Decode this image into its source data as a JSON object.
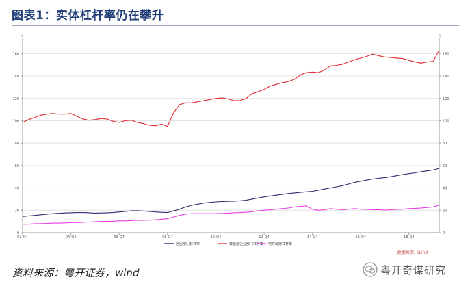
{
  "title": "图表1：实体杠杆率仍在攀升",
  "source": "资料来源：粤开证券，wind",
  "credit": "数据来源：Wind",
  "watermark": "粤开奇谋研究",
  "colors": {
    "title": "#1f3e77",
    "household": "#2e2a6e",
    "nonfin": "#e0282e",
    "government": "#e63ce6"
  },
  "chart_data": {
    "type": "line",
    "title": "",
    "xlabel": "",
    "ylabel": "",
    "ylim": [
      0,
      170
    ],
    "yticks": [
      0,
      20,
      40,
      60,
      80,
      100,
      120,
      140,
      160
    ],
    "y_unit_left": "%",
    "y_unit_right": "%",
    "grid": true,
    "legend": "bottom",
    "x_tick_labels": [
      "02-Q4",
      "04-Q4",
      "06-Q4",
      "08-Q4",
      "10-Q4",
      "12-Q4",
      "14-Q4",
      "16-Q4",
      "18-Q4"
    ],
    "x": [
      "02-Q4",
      "03-Q1",
      "03-Q2",
      "03-Q3",
      "03-Q4",
      "04-Q1",
      "04-Q2",
      "04-Q3",
      "04-Q4",
      "05-Q1",
      "05-Q2",
      "05-Q3",
      "05-Q4",
      "06-Q1",
      "06-Q2",
      "06-Q3",
      "06-Q4",
      "07-Q1",
      "07-Q2",
      "07-Q3",
      "07-Q4",
      "08-Q1",
      "08-Q2",
      "08-Q3",
      "08-Q4",
      "09-Q1",
      "09-Q2",
      "09-Q3",
      "09-Q4",
      "10-Q1",
      "10-Q2",
      "10-Q3",
      "10-Q4",
      "11-Q1",
      "11-Q2",
      "11-Q3",
      "11-Q4",
      "12-Q1",
      "12-Q2",
      "12-Q3",
      "12-Q4",
      "13-Q1",
      "13-Q2",
      "13-Q3",
      "13-Q4",
      "14-Q1",
      "14-Q2",
      "14-Q3",
      "14-Q4",
      "15-Q1",
      "15-Q2",
      "15-Q3",
      "15-Q4",
      "16-Q1",
      "16-Q2",
      "16-Q3",
      "16-Q4",
      "17-Q1",
      "17-Q2",
      "17-Q3",
      "17-Q4",
      "18-Q1",
      "18-Q2",
      "18-Q3",
      "18-Q4",
      "19-Q1",
      "19-Q2",
      "19-Q3",
      "19-Q4",
      "20-Q1"
    ],
    "series": [
      {
        "name": "居民部门杠杆率",
        "color": "#2e2a6e",
        "values": [
          14.5,
          15,
          15.5,
          16,
          16.5,
          17,
          17.3,
          17.6,
          17.8,
          18,
          18,
          17.8,
          17.5,
          17.6,
          17.8,
          18,
          18.5,
          19,
          19.5,
          19.6,
          19.3,
          19,
          18.5,
          18.2,
          18,
          19.5,
          21,
          23,
          24.5,
          25.5,
          26.5,
          27,
          27.5,
          27.8,
          28,
          28.2,
          28.5,
          29,
          30,
          31,
          32,
          32.8,
          33.5,
          34.2,
          35,
          35.5,
          36,
          36.5,
          37,
          38,
          39,
          40,
          41,
          42,
          43.5,
          45,
          46,
          47,
          48,
          48.7,
          49.3,
          50,
          51,
          52,
          52.8,
          53.5,
          54.5,
          55.3,
          56,
          57.5
        ]
      },
      {
        "name": "非金融企业部门杠杆率",
        "color": "#e0282e",
        "values": [
          98.5,
          101,
          103,
          105,
          106,
          106.5,
          106,
          106,
          106.5,
          104,
          101.5,
          100.5,
          101,
          102,
          101.5,
          99.5,
          98.5,
          100,
          100.5,
          98.5,
          97.5,
          96,
          95.5,
          97,
          95,
          107,
          114.5,
          116,
          116,
          117,
          118,
          119,
          120,
          120.5,
          119.5,
          118,
          118,
          120,
          124,
          126,
          128,
          131,
          132.5,
          134,
          135,
          137,
          141,
          143,
          143.5,
          143,
          145.5,
          149,
          149.5,
          150.5,
          152.5,
          154.5,
          156,
          157.5,
          159.5,
          158,
          157,
          156.5,
          156,
          155.5,
          154,
          152.5,
          151.5,
          152.5,
          153,
          163
        ]
      },
      {
        "name": "地方政府杠杆率",
        "color": "#e63ce6",
        "values": [
          7.5,
          7.5,
          8,
          8,
          8.2,
          8.5,
          8.5,
          8.7,
          9,
          9,
          9.2,
          9.5,
          9.8,
          10,
          10,
          10.2,
          10.5,
          10.5,
          10.8,
          11,
          11,
          11.2,
          11.5,
          12,
          12.5,
          14,
          15.5,
          16.5,
          17,
          17,
          17,
          17,
          17,
          17.2,
          17.5,
          17.8,
          18,
          18.2,
          18.8,
          19.5,
          20,
          20.5,
          21,
          21.5,
          22,
          23,
          23.5,
          24,
          21,
          20,
          20.5,
          21.5,
          21,
          20.5,
          21,
          21.5,
          21,
          20.8,
          20.5,
          20.5,
          20.2,
          20.5,
          20.8,
          21,
          21.5,
          21.8,
          22,
          22.5,
          23,
          24.5
        ]
      }
    ]
  }
}
